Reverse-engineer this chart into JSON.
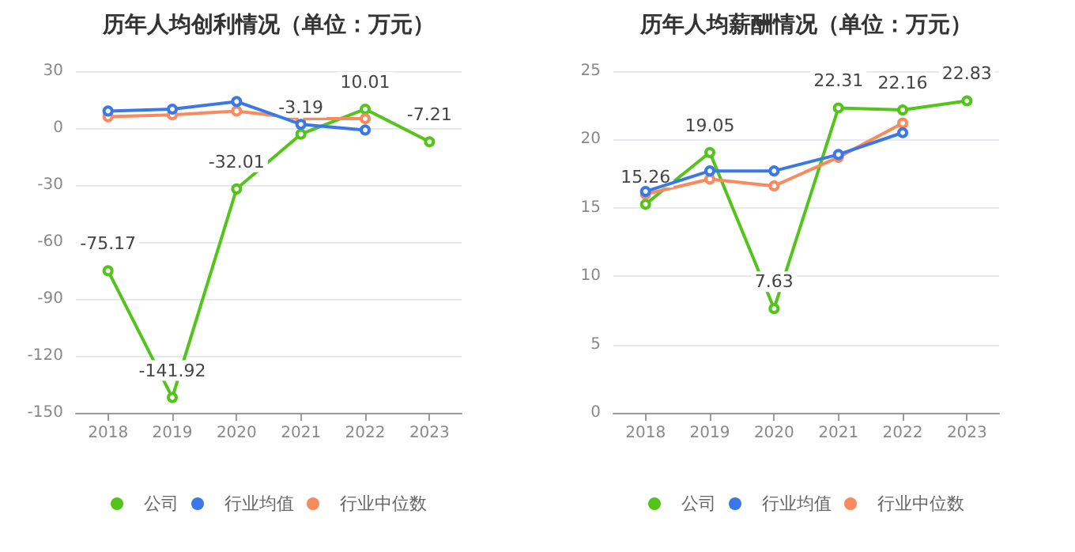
{
  "chart_data": [
    {
      "type": "line",
      "title": "历年人均创利情况（单位：万元）",
      "categories": [
        "2018",
        "2019",
        "2020",
        "2021",
        "2022",
        "2023"
      ],
      "series": [
        {
          "name": "公司",
          "color": "#52c41a",
          "values": [
            -75.17,
            -141.92,
            -32.01,
            -3.19,
            10.01,
            -7.21
          ],
          "value_labels": [
            "-75.17",
            "-141.92",
            "-32.01",
            "-3.19",
            "10.01",
            "-7.21"
          ]
        },
        {
          "name": "行业均值",
          "color": "#3b78e7",
          "values": [
            9,
            10,
            14,
            2,
            -1,
            null
          ]
        },
        {
          "name": "行业中位数",
          "color": "#f98a5e",
          "values": [
            6,
            7,
            9,
            5,
            5,
            null
          ]
        }
      ],
      "ylim": [
        -150,
        30
      ],
      "yticks": [
        -150,
        -120,
        -90,
        -60,
        -30,
        0,
        30
      ],
      "grid": "y",
      "legend": "bottom",
      "marker": "circle",
      "line_style": "solid"
    },
    {
      "type": "line",
      "title": "历年人均薪酬情况（单位：万元）",
      "categories": [
        "2018",
        "2019",
        "2020",
        "2021",
        "2022",
        "2023"
      ],
      "series": [
        {
          "name": "公司",
          "color": "#52c41a",
          "values": [
            15.26,
            19.05,
            7.63,
            22.31,
            22.16,
            22.83
          ],
          "value_labels": [
            "15.26",
            "19.05",
            "7.63",
            "22.31",
            "22.16",
            "22.83"
          ]
        },
        {
          "name": "行业均值",
          "color": "#3b78e7",
          "values": [
            16.2,
            17.7,
            17.7,
            18.9,
            20.5,
            null
          ]
        },
        {
          "name": "行业中位数",
          "color": "#f98a5e",
          "values": [
            16.0,
            17.1,
            16.6,
            18.7,
            21.2,
            null
          ]
        }
      ],
      "ylim": [
        0,
        25
      ],
      "yticks": [
        0,
        5,
        10,
        15,
        20,
        25
      ],
      "grid": "y",
      "legend": "bottom",
      "marker": "circle",
      "line_style": "solid"
    }
  ]
}
